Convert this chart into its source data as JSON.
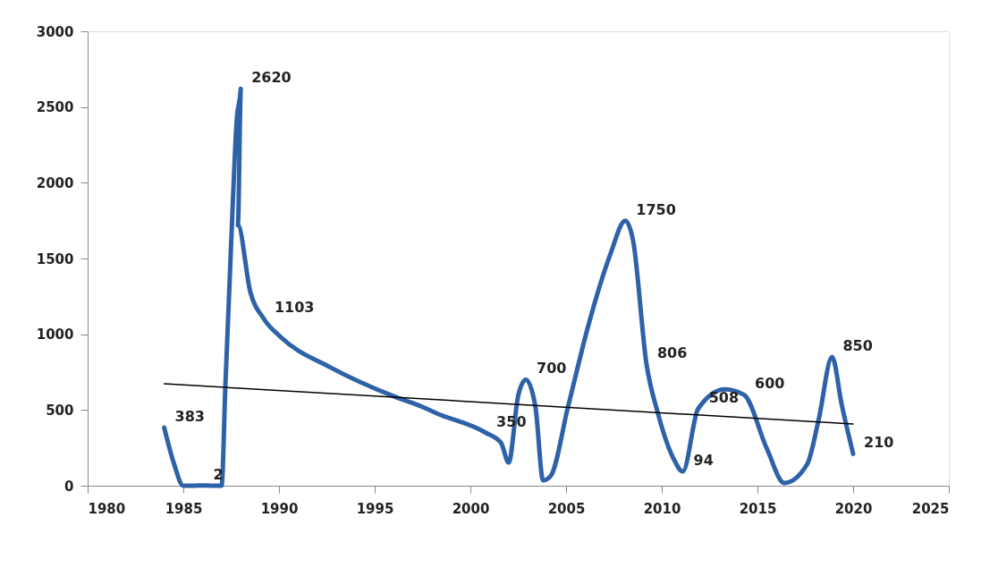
{
  "chart_data": {
    "type": "line",
    "xlim": [
      1980,
      2025
    ],
    "ylim": [
      0,
      3000
    ],
    "xticks": [
      1980,
      1985,
      1990,
      1995,
      2000,
      2005,
      2010,
      2015,
      2020,
      2025
    ],
    "yticks": [
      0,
      500,
      1000,
      1500,
      2000,
      2500,
      3000
    ],
    "grid": false,
    "marker": "none",
    "line_style": "solid",
    "series": [
      {
        "color": "#2e62a8",
        "x": [
          1984,
          1984.5,
          1985,
          1985.5,
          1986,
          1986.6,
          1987,
          1987.2,
          1987.5,
          1987.8,
          1988,
          1987.85,
          1988.5,
          1989.2,
          1990.1,
          1992.7,
          1996.1,
          1997.5,
          1998.2,
          2000.8,
          2001.6,
          2002.0,
          2002.5,
          2002.9,
          2003.4,
          2003.8,
          2004.2,
          2005.1,
          2006.2,
          2007.3,
          2008.1,
          2008.5,
          2009.2,
          2009.8,
          2010.6,
          2011.1,
          2011.9,
          2013.3,
          2014.3,
          2015.5,
          2016.4,
          2017.6,
          2018.2,
          2018.9,
          2019.4,
          2020
        ],
        "values": [
          383,
          150,
          0,
          0,
          2,
          0,
          0,
          670,
          1600,
          2430,
          2620,
          1720,
          1280,
          1103,
          980,
          780,
          585,
          520,
          480,
          350,
          283,
          153,
          596,
          700,
          520,
          35,
          65,
          520,
          1075,
          1523,
          1750,
          1620,
          806,
          478,
          183,
          94,
          508,
          637,
          600,
          242,
          18,
          142,
          437,
          850,
          537,
          210
        ],
        "value_labels": [
          "383",
          null,
          null,
          null,
          "2",
          null,
          null,
          null,
          null,
          null,
          "2620",
          null,
          null,
          "1103",
          null,
          null,
          null,
          null,
          null,
          "350",
          null,
          null,
          null,
          "700",
          null,
          null,
          null,
          null,
          null,
          null,
          "1750",
          null,
          "806",
          null,
          null,
          "94",
          "508",
          null,
          "600",
          null,
          null,
          null,
          null,
          "850",
          null,
          "210"
        ]
      },
      {
        "type": "line",
        "color": "#000000",
        "x": [
          1984,
          2020
        ],
        "values": [
          673,
          407
        ]
      }
    ]
  }
}
